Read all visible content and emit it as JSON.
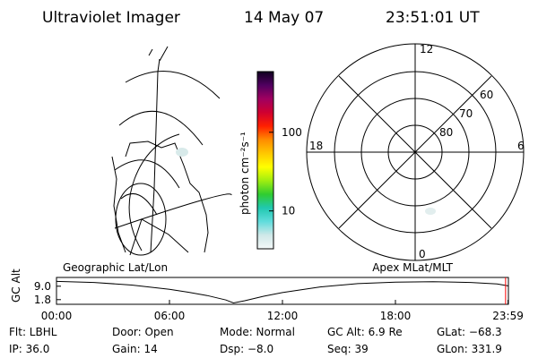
{
  "header": {
    "title": "Ultraviolet Imager",
    "date": "14 May 07",
    "time": "23:51:01 UT"
  },
  "colorbar": {
    "label": "photon cm⁻²s⁻¹",
    "scale": "log",
    "lim": [
      3.3,
      590
    ],
    "ticks": [
      10,
      100
    ],
    "colors": [
      "#f4f8f8",
      "#cfe8e8",
      "#60dcdc",
      "#20c8b0",
      "#30cc30",
      "#a0ee10",
      "#ffff00",
      "#ffc800",
      "#ff8c00",
      "#ff2000",
      "#d00030",
      "#a00060",
      "#500060",
      "#100020"
    ]
  },
  "polar": {
    "mlt_labels": [
      "12",
      "6",
      "0",
      "18"
    ],
    "lat_labels": [
      "60",
      "70",
      "80"
    ]
  },
  "chart_data": {
    "type": "line",
    "title_left": "Geographic Lat/Lon",
    "title_right": "Apex MLat/MLT",
    "ylabel": "GC Alt",
    "x": [
      0,
      2,
      4,
      6,
      7,
      8,
      9,
      9.4,
      10,
      11,
      12,
      14,
      16,
      18,
      20,
      22,
      23.4,
      23.98
    ],
    "values": [
      11.6,
      11.0,
      9.6,
      7.3,
      5.8,
      4.0,
      1.6,
      0.0,
      1.2,
      3.6,
      5.6,
      8.6,
      10.4,
      11.2,
      11.4,
      11.0,
      10.2,
      9.2
    ],
    "color": "#000000",
    "xlim": [
      0,
      24
    ],
    "ylim": [
      -0.7,
      13.7
    ],
    "xticks": [
      {
        "value": 0,
        "label": "00:00"
      },
      {
        "value": 6,
        "label": "06:00"
      },
      {
        "value": 12,
        "label": "12:00"
      },
      {
        "value": 18,
        "label": "18:00"
      },
      {
        "value": 23.98,
        "label": "23:59"
      }
    ],
    "yticks": [
      {
        "value": 1.8,
        "label": "1.8"
      },
      {
        "value": 9.0,
        "label": "9.0"
      }
    ],
    "marker_x": 23.85,
    "marker_color": "#ff0000"
  },
  "info": [
    [
      "Flt: LBHL",
      "Door: Open",
      "Mode: Normal",
      "GC Alt: 6.9 Re",
      "GLat: −68.3"
    ],
    [
      "IP: 36.0",
      "Gain: 14",
      "Dsp:   −8.0",
      "Seq: 39",
      "GLon: 331.9"
    ]
  ]
}
